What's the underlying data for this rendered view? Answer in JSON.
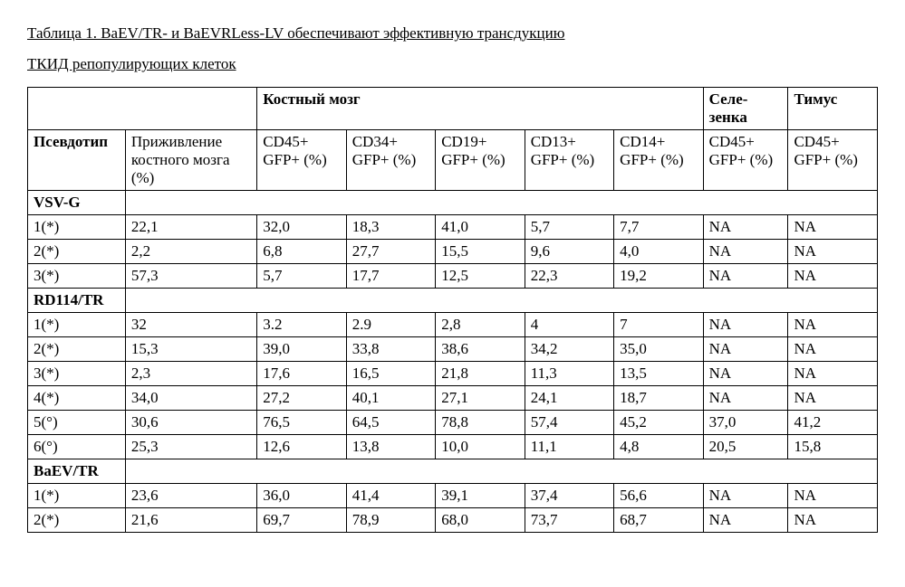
{
  "title_line1": "Таблица 1. BaEV/TR- и BaEVRLess-LV обеспечивают эффективную трансдукцию",
  "title_line2": "ТКИД репопулирующих клеток",
  "headers": {
    "bone_marrow": "Костный мозг",
    "spleen": "Селе-зенка",
    "thymus": "Тимус",
    "pseudotype": "Псевдотип",
    "engraftment": "Приживление костного мозга (%)",
    "cd45": "CD45+ GFP+ (%)",
    "cd34": "CD34+ GFP+ (%)",
    "cd19": "CD19+ GFP+ (%)",
    "cd13": "CD13+ GFP+ (%)",
    "cd14": "CD14+ GFP+ (%)",
    "spleen_cd45": "CD45+ GFP+ (%)",
    "thymus_cd45": "CD45+ GFP+ (%)"
  },
  "sections": [
    {
      "label": "VSV-G",
      "rows": [
        [
          "1(*)",
          "22,1",
          "32,0",
          "18,3",
          "41,0",
          "5,7",
          "7,7",
          "NA",
          "NA"
        ],
        [
          "2(*)",
          "2,2",
          "6,8",
          "27,7",
          "15,5",
          "9,6",
          "4,0",
          "NA",
          "NA"
        ],
        [
          "3(*)",
          "57,3",
          "5,7",
          "17,7",
          "12,5",
          "22,3",
          "19,2",
          "NA",
          "NA"
        ]
      ]
    },
    {
      "label": "RD114/TR",
      "rows": [
        [
          "1(*)",
          "32",
          "3.2",
          "2.9",
          "2,8",
          "4",
          "7",
          "NA",
          "NA"
        ],
        [
          "2(*)",
          "15,3",
          "39,0",
          "33,8",
          "38,6",
          "34,2",
          "35,0",
          "NA",
          "NA"
        ],
        [
          "3(*)",
          "2,3",
          "17,6",
          "16,5",
          "21,8",
          "11,3",
          "13,5",
          "NA",
          "NA"
        ],
        [
          "4(*)",
          "34,0",
          "27,2",
          "40,1",
          "27,1",
          "24,1",
          "18,7",
          "NA",
          "NA"
        ],
        [
          "5(°)",
          "30,6",
          "76,5",
          "64,5",
          "78,8",
          "57,4",
          "45,2",
          "37,0",
          "41,2"
        ],
        [
          "6(°)",
          "25,3",
          "12,6",
          "13,8",
          "10,0",
          "11,1",
          "4,8",
          "20,5",
          "15,8"
        ]
      ]
    },
    {
      "label": "BaEV/TR",
      "rows": [
        [
          "1(*)",
          "23,6",
          "36,0",
          "41,4",
          "39,1",
          "37,4",
          "56,6",
          "NA",
          "NA"
        ],
        [
          "2(*)",
          "21,6",
          "69,7",
          "78,9",
          "68,0",
          "73,7",
          "68,7",
          "NA",
          "NA"
        ]
      ]
    }
  ]
}
